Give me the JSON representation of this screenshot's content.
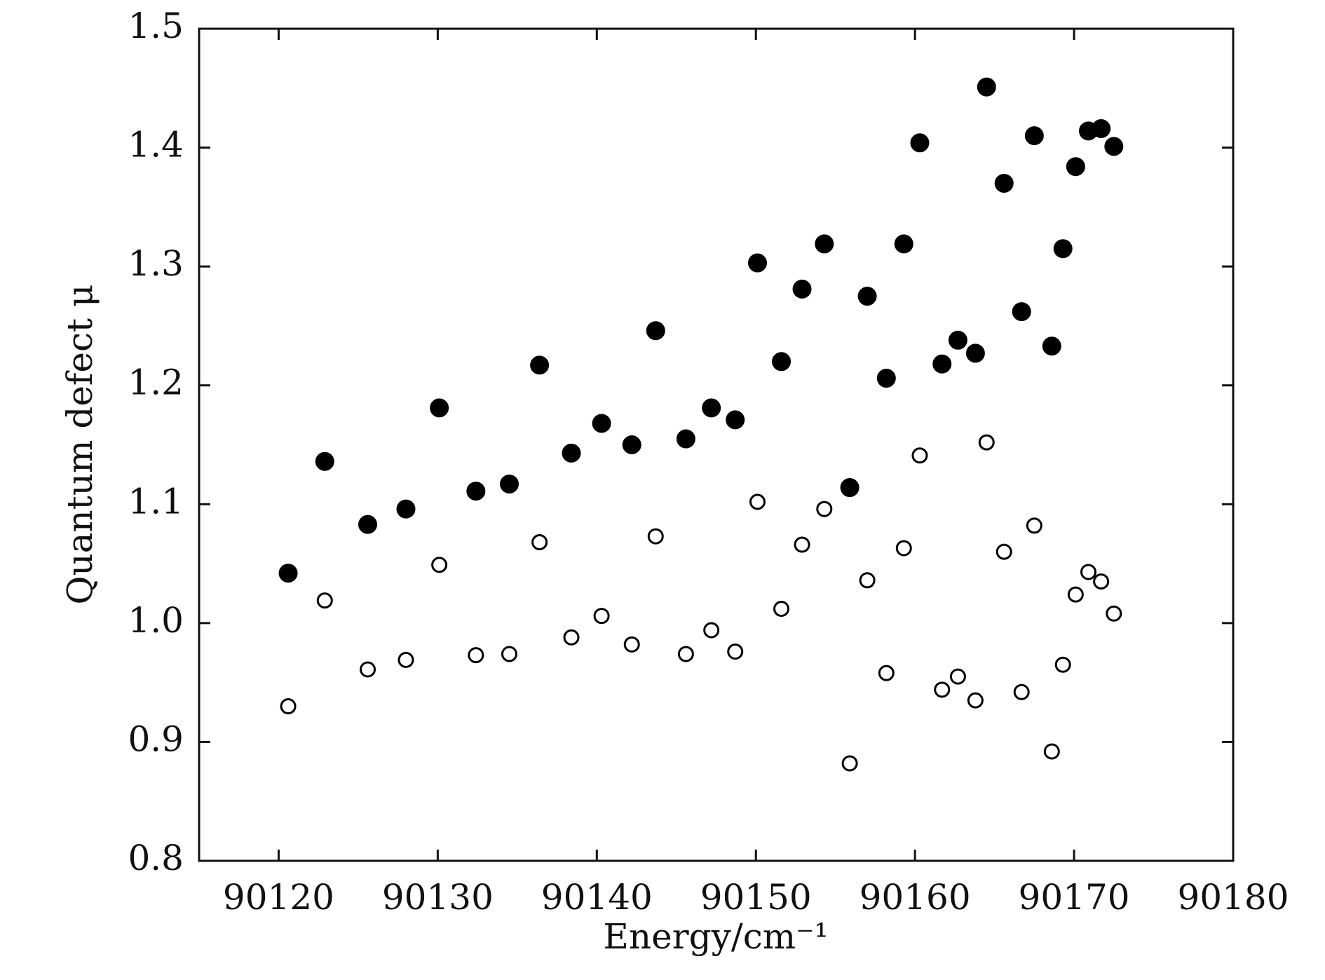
{
  "chart_data": {
    "type": "scatter",
    "x_label": "Energy/cm⁻¹",
    "y_label": "Quantum defect μ",
    "x": [
      90120.6,
      90122.9,
      90125.6,
      90128.0,
      90130.1,
      90132.4,
      90134.5,
      90136.4,
      90138.4,
      90140.3,
      90142.2,
      90143.7,
      90145.6,
      90147.2,
      90148.7,
      90150.1,
      90151.6,
      90152.9,
      90154.3,
      90155.9,
      90157.0,
      90158.2,
      90159.3,
      90160.3,
      90161.7,
      90162.7,
      90163.8,
      90164.5,
      90165.6,
      90166.7,
      90167.5,
      90168.6,
      90169.3,
      90170.1,
      90170.9,
      90171.7,
      90172.5
    ],
    "series": [
      {
        "color": "#000000",
        "marker": "filled",
        "values": [
          1.042,
          1.136,
          1.083,
          1.096,
          1.181,
          1.111,
          1.117,
          1.217,
          1.143,
          1.168,
          1.15,
          1.246,
          1.155,
          1.181,
          1.171,
          1.303,
          1.22,
          1.281,
          1.319,
          1.114,
          1.275,
          1.206,
          1.319,
          1.404,
          1.218,
          1.238,
          1.227,
          1.451,
          1.37,
          1.262,
          1.41,
          1.233,
          1.315,
          1.384,
          1.414,
          1.416,
          1.401
        ]
      },
      {
        "color": "#000000",
        "marker": "hollow",
        "values": [
          0.93,
          1.019,
          0.961,
          0.969,
          1.049,
          0.973,
          0.974,
          1.068,
          0.988,
          1.006,
          0.982,
          1.073,
          0.974,
          0.994,
          0.976,
          1.102,
          1.012,
          1.066,
          1.096,
          0.882,
          1.036,
          0.958,
          1.063,
          1.141,
          0.944,
          0.955,
          0.935,
          1.152,
          1.06,
          0.942,
          1.082,
          0.892,
          0.965,
          1.024,
          1.043,
          1.035,
          1.008
        ]
      }
    ],
    "xlim": [
      90115,
      90180
    ],
    "xticks": [
      90120,
      90130,
      90140,
      90150,
      90160,
      90170,
      90180
    ],
    "ylim": [
      0.8,
      1.5
    ],
    "yticks": [
      0.8,
      0.9,
      {
        "value": 1.0,
        "label": "1.0"
      },
      1.1,
      1.2,
      1.3,
      1.4,
      1.5
    ],
    "grid": false
  }
}
